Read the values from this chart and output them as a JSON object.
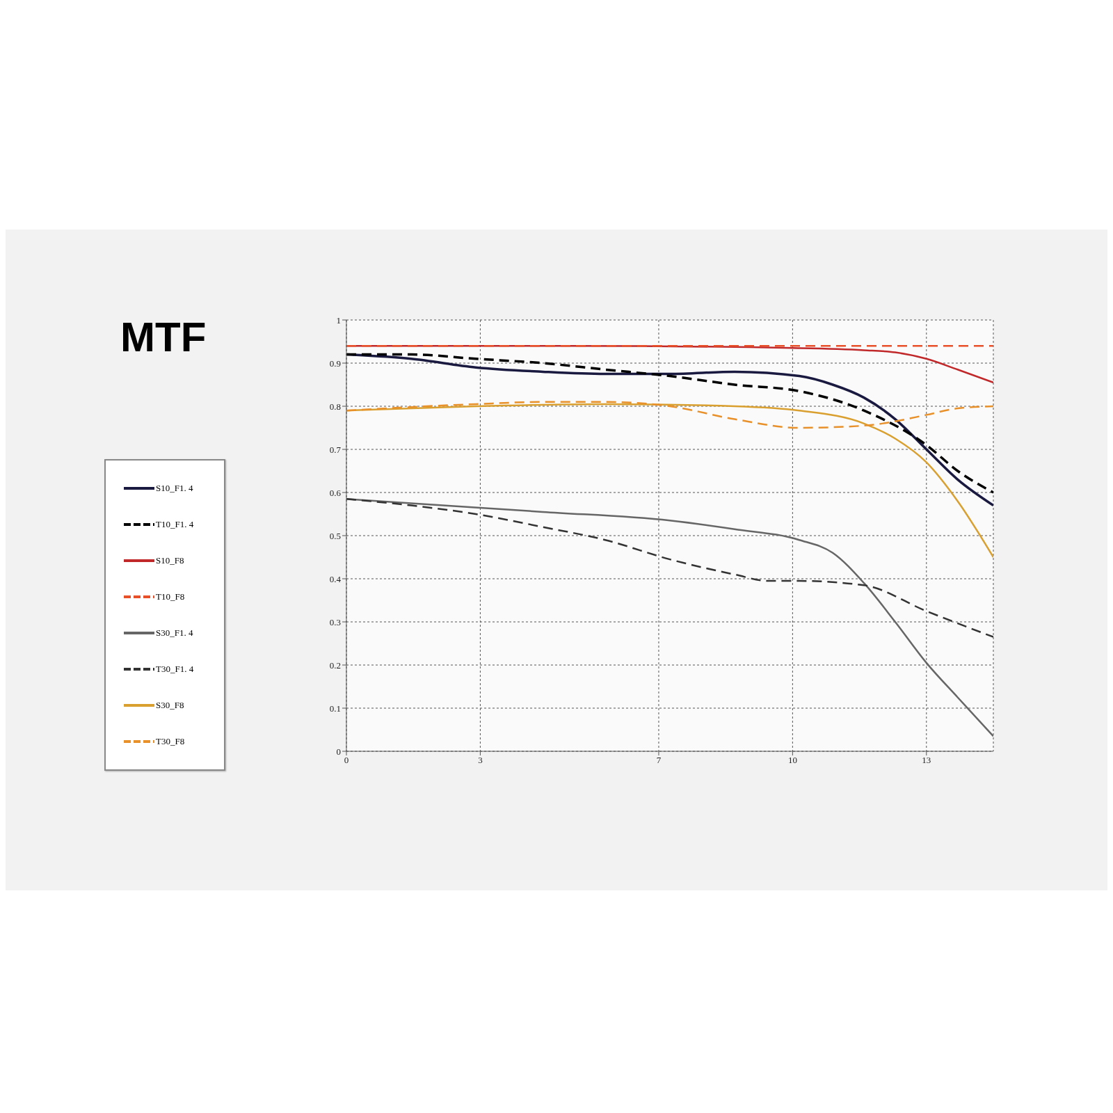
{
  "chart_data": {
    "type": "line",
    "title": "MTF",
    "legend": "left",
    "grid": true,
    "xlim": [
      0,
      14.5
    ],
    "xticks": [
      0,
      3,
      7,
      10,
      13
    ],
    "ylim": [
      0,
      1
    ],
    "yticks": [
      0,
      0.1,
      0.2,
      0.3,
      0.4,
      0.5,
      0.6,
      0.7,
      0.8,
      0.9,
      1
    ],
    "series": [
      {
        "name": "S10_F1. 4",
        "color": "#1a1a40",
        "line_style": "solid",
        "x": [
          0,
          1.45,
          2.9,
          4.4,
          5.8,
          7.25,
          8.7,
          10.15,
          10.9,
          11.6,
          12.3,
          13,
          13.7,
          14.5
        ],
        "values": [
          0.92,
          0.91,
          0.89,
          0.88,
          0.875,
          0.875,
          0.88,
          0.87,
          0.85,
          0.82,
          0.77,
          0.7,
          0.63,
          0.57
        ]
      },
      {
        "name": "T10_F1. 4",
        "color": "#000000",
        "line_style": "dashed",
        "x": [
          0,
          1.45,
          2.9,
          4.4,
          5.8,
          7.25,
          8.7,
          10.15,
          11.6,
          13,
          13.7,
          14.5
        ],
        "values": [
          0.92,
          0.92,
          0.91,
          0.9,
          0.885,
          0.87,
          0.85,
          0.835,
          0.79,
          0.71,
          0.65,
          0.6
        ]
      },
      {
        "name": "S10_F8",
        "color": "#c0282a",
        "line_style": "solid",
        "x": [
          0,
          5,
          10,
          11.6,
          12.3,
          13,
          13.7,
          14.5
        ],
        "values": [
          0.94,
          0.94,
          0.935,
          0.93,
          0.925,
          0.91,
          0.885,
          0.855
        ]
      },
      {
        "name": "T10_F8",
        "color": "#e8502a",
        "line_style": "dashed",
        "x": [
          0,
          5,
          10,
          14.5
        ],
        "values": [
          0.94,
          0.94,
          0.94,
          0.94
        ]
      },
      {
        "name": "S30_F1. 4",
        "color": "#666666",
        "line_style": "solid",
        "x": [
          0,
          1.45,
          4.4,
          7.25,
          8.7,
          10.15,
          10.9,
          11.6,
          12.3,
          13,
          13.7,
          14.5
        ],
        "values": [
          0.585,
          0.575,
          0.555,
          0.535,
          0.515,
          0.49,
          0.46,
          0.39,
          0.3,
          0.205,
          0.125,
          0.035
        ]
      },
      {
        "name": "T30_F1. 4",
        "color": "#333333",
        "line_style": "dashed",
        "x": [
          0,
          1.45,
          2.9,
          4.4,
          5.8,
          7.25,
          8.7,
          9.45,
          10.15,
          11.6,
          13,
          14.5
        ],
        "values": [
          0.585,
          0.57,
          0.55,
          0.52,
          0.49,
          0.445,
          0.41,
          0.395,
          0.395,
          0.385,
          0.325,
          0.265
        ]
      },
      {
        "name": "S30_F8",
        "color": "#d9a030",
        "line_style": "solid",
        "x": [
          0,
          2.9,
          5.8,
          8.7,
          10.15,
          11.6,
          12.3,
          13,
          13.7,
          14.5
        ],
        "values": [
          0.79,
          0.8,
          0.805,
          0.8,
          0.79,
          0.76,
          0.725,
          0.67,
          0.58,
          0.45
        ]
      },
      {
        "name": "T30_F8",
        "color": "#e8902a",
        "line_style": "dashed",
        "x": [
          0,
          2.9,
          4.4,
          5.8,
          7.25,
          8.7,
          10.15,
          11.6,
          12.3,
          13,
          13.7,
          14.5
        ],
        "values": [
          0.79,
          0.805,
          0.81,
          0.81,
          0.8,
          0.77,
          0.75,
          0.755,
          0.765,
          0.78,
          0.795,
          0.8
        ]
      }
    ]
  }
}
